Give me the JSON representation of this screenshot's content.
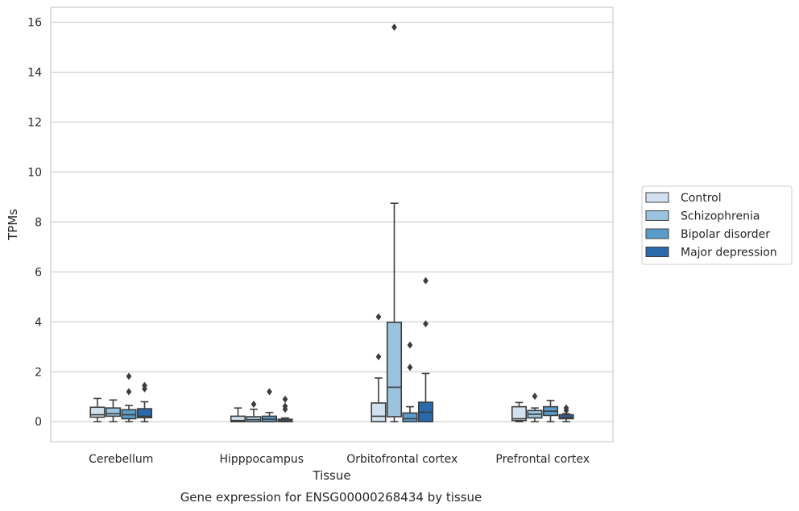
{
  "chart_data": {
    "type": "box",
    "title": "",
    "caption": "Gene expression for ENSG00000268434 by tissue",
    "xlabel": "Tissue",
    "ylabel": "TPMs",
    "ylim": [
      -0.8,
      16.6
    ],
    "yticks": [
      0,
      2,
      4,
      6,
      8,
      10,
      12,
      14,
      16
    ],
    "grid": "horizontal",
    "legend_position": "right",
    "categories": [
      "Cerebellum",
      "Hipppocampus",
      "Orbitofrontal cortex",
      "Prefrontal cortex"
    ],
    "series": [
      {
        "name": "Control",
        "color": "#d1e1ef",
        "boxes": [
          {
            "whislo": 0.0,
            "q1": 0.18,
            "med": 0.28,
            "q3": 0.58,
            "whishi": 0.93,
            "fliers": []
          },
          {
            "whislo": 0.0,
            "q1": 0.0,
            "med": 0.05,
            "q3": 0.22,
            "whishi": 0.55,
            "fliers": []
          },
          {
            "whislo": 0.0,
            "q1": 0.0,
            "med": 0.22,
            "q3": 0.75,
            "whishi": 1.75,
            "fliers": [
              2.6,
              4.2
            ]
          },
          {
            "whislo": 0.0,
            "q1": 0.05,
            "med": 0.12,
            "q3": 0.6,
            "whishi": 0.77,
            "fliers": []
          }
        ]
      },
      {
        "name": "Schizophrenia",
        "color": "#9bc3dd",
        "boxes": [
          {
            "whislo": 0.0,
            "q1": 0.22,
            "med": 0.32,
            "q3": 0.55,
            "whishi": 0.87,
            "fliers": []
          },
          {
            "whislo": 0.0,
            "q1": 0.0,
            "med": 0.08,
            "q3": 0.2,
            "whishi": 0.5,
            "fliers": [
              0.7
            ]
          },
          {
            "whislo": 0.0,
            "q1": 0.2,
            "med": 1.38,
            "q3": 3.98,
            "whishi": 8.75,
            "fliers": [
              15.8
            ]
          },
          {
            "whislo": 0.0,
            "q1": 0.15,
            "med": 0.3,
            "q3": 0.45,
            "whishi": 0.55,
            "fliers": [
              1.02
            ]
          }
        ]
      },
      {
        "name": "Bipolar disorder",
        "color": "#5a9cc9",
        "boxes": [
          {
            "whislo": 0.0,
            "q1": 0.12,
            "med": 0.28,
            "q3": 0.48,
            "whishi": 0.65,
            "fliers": [
              1.2,
              1.82
            ]
          },
          {
            "whislo": 0.0,
            "q1": 0.0,
            "med": 0.1,
            "q3": 0.22,
            "whishi": 0.37,
            "fliers": [
              1.2
            ]
          },
          {
            "whislo": 0.0,
            "q1": 0.0,
            "med": 0.12,
            "q3": 0.35,
            "whishi": 0.6,
            "fliers": [
              2.18,
              3.07
            ]
          },
          {
            "whislo": 0.0,
            "q1": 0.25,
            "med": 0.42,
            "q3": 0.6,
            "whishi": 0.85,
            "fliers": []
          }
        ]
      },
      {
        "name": "Major depression",
        "color": "#2a69ac",
        "boxes": [
          {
            "whislo": 0.0,
            "q1": 0.16,
            "med": 0.22,
            "q3": 0.52,
            "whishi": 0.8,
            "fliers": [
              1.32,
              1.45
            ]
          },
          {
            "whislo": 0.0,
            "q1": 0.0,
            "med": 0.03,
            "q3": 0.1,
            "whishi": 0.15,
            "fliers": [
              0.5,
              0.62,
              0.9
            ]
          },
          {
            "whislo": 0.0,
            "q1": 0.0,
            "med": 0.38,
            "q3": 0.78,
            "whishi": 1.93,
            "fliers": [
              3.92,
              5.65
            ]
          },
          {
            "whislo": 0.0,
            "q1": 0.12,
            "med": 0.18,
            "q3": 0.28,
            "whishi": 0.32,
            "fliers": [
              0.45,
              0.55
            ]
          }
        ]
      }
    ]
  }
}
